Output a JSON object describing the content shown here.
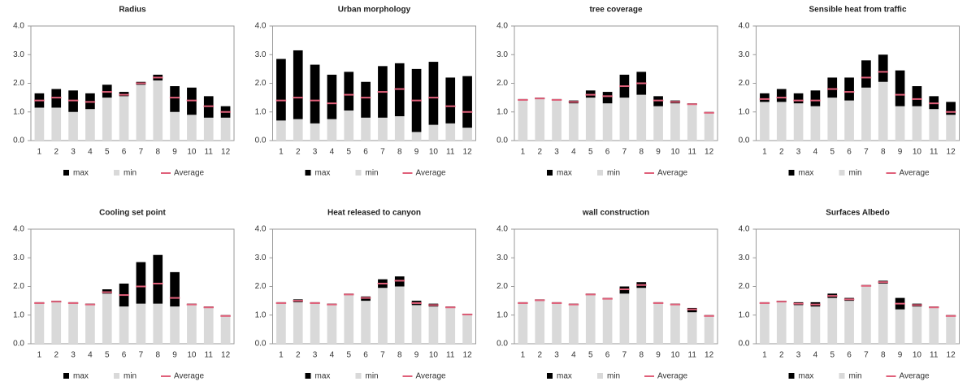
{
  "chart_data": [
    {
      "type": "bar",
      "stacked": true,
      "title": "Radius",
      "categories": [
        1,
        2,
        3,
        4,
        5,
        6,
        7,
        8,
        9,
        10,
        11,
        12
      ],
      "ylim": [
        0,
        4
      ],
      "yticks": [
        {
          "value": 0,
          "label": "0.0"
        },
        {
          "value": 1,
          "label": "1.0"
        },
        {
          "value": 2,
          "label": "2.0"
        },
        {
          "value": 3,
          "label": "3.0"
        },
        {
          "value": 4,
          "label": "4.0"
        }
      ],
      "series": [
        {
          "name": "max",
          "type": "bar",
          "color": "#000000",
          "values": [
            0.5,
            0.65,
            0.75,
            0.55,
            0.45,
            0.15,
            0.1,
            0.2,
            0.9,
            0.95,
            0.75,
            0.4
          ]
        },
        {
          "name": "min",
          "type": "bar",
          "color": "#d9d9d9",
          "values": [
            1.15,
            1.15,
            1.0,
            1.1,
            1.5,
            1.55,
            1.95,
            2.1,
            1.0,
            0.9,
            0.8,
            0.8
          ]
        },
        {
          "name": "Average",
          "type": "marker",
          "color": "#e0607a",
          "values": [
            1.4,
            1.5,
            1.4,
            1.35,
            1.7,
            1.6,
            2.0,
            2.2,
            1.5,
            1.4,
            1.2,
            1.0
          ]
        }
      ]
    },
    {
      "type": "bar",
      "stacked": true,
      "title": "Urban morphology",
      "categories": [
        1,
        2,
        3,
        4,
        5,
        6,
        7,
        8,
        9,
        10,
        11,
        12
      ],
      "ylim": [
        0,
        4
      ],
      "yticks": [
        {
          "value": 0,
          "label": "0.0"
        },
        {
          "value": 1,
          "label": "1.0"
        },
        {
          "value": 2,
          "label": "2.0"
        },
        {
          "value": 3,
          "label": "3.0"
        },
        {
          "value": 4,
          "label": "4.0"
        }
      ],
      "series": [
        {
          "name": "max",
          "type": "bar",
          "color": "#000000",
          "values": [
            2.15,
            2.4,
            2.05,
            1.55,
            1.35,
            1.25,
            1.8,
            1.85,
            2.2,
            2.2,
            1.6,
            1.8
          ]
        },
        {
          "name": "min",
          "type": "bar",
          "color": "#d9d9d9",
          "values": [
            0.7,
            0.75,
            0.6,
            0.75,
            1.05,
            0.8,
            0.8,
            0.85,
            0.3,
            0.55,
            0.6,
            0.45
          ]
        },
        {
          "name": "Average",
          "type": "marker",
          "color": "#e0607a",
          "values": [
            1.4,
            1.5,
            1.4,
            1.3,
            1.6,
            1.5,
            1.7,
            1.8,
            1.4,
            1.5,
            1.2,
            1.0
          ]
        }
      ]
    },
    {
      "type": "bar",
      "stacked": true,
      "title": "tree coverage",
      "categories": [
        1,
        2,
        3,
        4,
        5,
        6,
        7,
        8,
        9,
        10,
        11,
        12
      ],
      "ylim": [
        0,
        4
      ],
      "yticks": [
        {
          "value": 0,
          "label": "0.0"
        },
        {
          "value": 1,
          "label": "1.0"
        },
        {
          "value": 2,
          "label": "2.0"
        },
        {
          "value": 3,
          "label": "3.0"
        },
        {
          "value": 4,
          "label": "4.0"
        }
      ],
      "series": [
        {
          "name": "max",
          "type": "bar",
          "color": "#000000",
          "values": [
            0.05,
            0.05,
            0.05,
            0.1,
            0.25,
            0.4,
            0.8,
            0.8,
            0.35,
            0.1,
            0.05,
            0.05
          ]
        },
        {
          "name": "min",
          "type": "bar",
          "color": "#d9d9d9",
          "values": [
            1.4,
            1.45,
            1.4,
            1.3,
            1.5,
            1.3,
            1.5,
            1.6,
            1.2,
            1.3,
            1.25,
            0.95
          ]
        },
        {
          "name": "Average",
          "type": "marker",
          "color": "#e0607a",
          "values": [
            1.42,
            1.47,
            1.42,
            1.35,
            1.6,
            1.55,
            1.9,
            2.0,
            1.4,
            1.35,
            1.27,
            0.97
          ]
        }
      ]
    },
    {
      "type": "bar",
      "stacked": true,
      "title": "Sensible heat from traffic",
      "categories": [
        1,
        2,
        3,
        4,
        5,
        6,
        7,
        8,
        9,
        10,
        11,
        12
      ],
      "ylim": [
        0,
        4
      ],
      "yticks": [
        {
          "value": 0,
          "label": "0.0"
        },
        {
          "value": 1,
          "label": "1.0"
        },
        {
          "value": 2,
          "label": "2.0"
        },
        {
          "value": 3,
          "label": "3.0"
        },
        {
          "value": 4,
          "label": "4.0"
        }
      ],
      "series": [
        {
          "name": "max",
          "type": "bar",
          "color": "#000000",
          "values": [
            0.3,
            0.45,
            0.35,
            0.55,
            0.7,
            0.8,
            0.95,
            0.95,
            1.25,
            0.7,
            0.45,
            0.45
          ]
        },
        {
          "name": "min",
          "type": "bar",
          "color": "#d9d9d9",
          "values": [
            1.35,
            1.35,
            1.3,
            1.2,
            1.5,
            1.4,
            1.85,
            2.05,
            1.2,
            1.2,
            1.1,
            0.9
          ]
        },
        {
          "name": "Average",
          "type": "marker",
          "color": "#e0607a",
          "values": [
            1.45,
            1.5,
            1.4,
            1.4,
            1.8,
            1.7,
            2.2,
            2.4,
            1.6,
            1.45,
            1.3,
            1.0
          ]
        }
      ]
    },
    {
      "type": "bar",
      "stacked": true,
      "title": "Cooling set point",
      "categories": [
        1,
        2,
        3,
        4,
        5,
        6,
        7,
        8,
        9,
        10,
        11,
        12
      ],
      "ylim": [
        0,
        4
      ],
      "yticks": [
        {
          "value": 0,
          "label": "0.0"
        },
        {
          "value": 1,
          "label": "1.0"
        },
        {
          "value": 2,
          "label": "2.0"
        },
        {
          "value": 3,
          "label": "3.0"
        },
        {
          "value": 4,
          "label": "4.0"
        }
      ],
      "series": [
        {
          "name": "max",
          "type": "bar",
          "color": "#000000",
          "values": [
            0.05,
            0.05,
            0.05,
            0.05,
            0.15,
            0.8,
            1.45,
            1.7,
            1.2,
            0.05,
            0.05,
            0.05
          ]
        },
        {
          "name": "min",
          "type": "bar",
          "color": "#d9d9d9",
          "values": [
            1.4,
            1.45,
            1.4,
            1.35,
            1.75,
            1.3,
            1.4,
            1.4,
            1.3,
            1.35,
            1.25,
            0.95
          ]
        },
        {
          "name": "Average",
          "type": "marker",
          "color": "#e0607a",
          "values": [
            1.42,
            1.47,
            1.42,
            1.37,
            1.8,
            1.7,
            2.0,
            2.1,
            1.6,
            1.37,
            1.27,
            0.97
          ]
        }
      ]
    },
    {
      "type": "bar",
      "stacked": true,
      "title": "Heat released to canyon",
      "categories": [
        1,
        2,
        3,
        4,
        5,
        6,
        7,
        8,
        9,
        10,
        11,
        12
      ],
      "ylim": [
        0,
        4
      ],
      "yticks": [
        {
          "value": 0,
          "label": "0.0"
        },
        {
          "value": 1,
          "label": "1.0"
        },
        {
          "value": 2,
          "label": "2.0"
        },
        {
          "value": 3,
          "label": "3.0"
        },
        {
          "value": 4,
          "label": "4.0"
        }
      ],
      "series": [
        {
          "name": "max",
          "type": "bar",
          "color": "#000000",
          "values": [
            0.05,
            0.1,
            0.05,
            0.05,
            0.05,
            0.15,
            0.3,
            0.35,
            0.15,
            0.1,
            0.05,
            0.05
          ]
        },
        {
          "name": "min",
          "type": "bar",
          "color": "#d9d9d9",
          "values": [
            1.4,
            1.45,
            1.4,
            1.35,
            1.7,
            1.5,
            1.95,
            2.0,
            1.35,
            1.3,
            1.25,
            1.0
          ]
        },
        {
          "name": "Average",
          "type": "marker",
          "color": "#e0607a",
          "values": [
            1.42,
            1.5,
            1.42,
            1.37,
            1.72,
            1.6,
            2.1,
            2.2,
            1.42,
            1.35,
            1.27,
            1.02
          ]
        }
      ]
    },
    {
      "type": "bar",
      "stacked": true,
      "title": "wall construction",
      "categories": [
        1,
        2,
        3,
        4,
        5,
        6,
        7,
        8,
        9,
        10,
        11,
        12
      ],
      "ylim": [
        0,
        4
      ],
      "yticks": [
        {
          "value": 0,
          "label": "0.0"
        },
        {
          "value": 1,
          "label": "1.0"
        },
        {
          "value": 2,
          "label": "2.0"
        },
        {
          "value": 3,
          "label": "3.0"
        },
        {
          "value": 4,
          "label": "4.0"
        }
      ],
      "series": [
        {
          "name": "max",
          "type": "bar",
          "color": "#000000",
          "values": [
            0.05,
            0.05,
            0.05,
            0.05,
            0.05,
            0.05,
            0.25,
            0.2,
            0.05,
            0.05,
            0.15,
            0.05
          ]
        },
        {
          "name": "min",
          "type": "bar",
          "color": "#d9d9d9",
          "values": [
            1.4,
            1.5,
            1.4,
            1.35,
            1.7,
            1.55,
            1.75,
            1.95,
            1.4,
            1.35,
            1.1,
            0.95
          ]
        },
        {
          "name": "Average",
          "type": "marker",
          "color": "#e0607a",
          "values": [
            1.42,
            1.52,
            1.42,
            1.37,
            1.72,
            1.57,
            1.9,
            2.05,
            1.42,
            1.37,
            1.2,
            0.97
          ]
        }
      ]
    },
    {
      "type": "bar",
      "stacked": true,
      "title": "Surfaces Albedo",
      "categories": [
        1,
        2,
        3,
        4,
        5,
        6,
        7,
        8,
        9,
        10,
        11,
        12
      ],
      "ylim": [
        0,
        4
      ],
      "yticks": [
        {
          "value": 0,
          "label": "0.0"
        },
        {
          "value": 1,
          "label": "1.0"
        },
        {
          "value": 2,
          "label": "2.0"
        },
        {
          "value": 3,
          "label": "3.0"
        },
        {
          "value": 4,
          "label": "4.0"
        }
      ],
      "series": [
        {
          "name": "max",
          "type": "bar",
          "color": "#000000",
          "values": [
            0.05,
            0.05,
            0.1,
            0.15,
            0.15,
            0.1,
            0.05,
            0.1,
            0.4,
            0.1,
            0.05,
            0.05
          ]
        },
        {
          "name": "min",
          "type": "bar",
          "color": "#d9d9d9",
          "values": [
            1.4,
            1.45,
            1.35,
            1.3,
            1.6,
            1.5,
            2.0,
            2.1,
            1.2,
            1.3,
            1.25,
            0.95
          ]
        },
        {
          "name": "Average",
          "type": "marker",
          "color": "#e0607a",
          "values": [
            1.42,
            1.47,
            1.4,
            1.37,
            1.67,
            1.55,
            2.02,
            2.15,
            1.4,
            1.35,
            1.27,
            0.97
          ]
        }
      ]
    }
  ]
}
